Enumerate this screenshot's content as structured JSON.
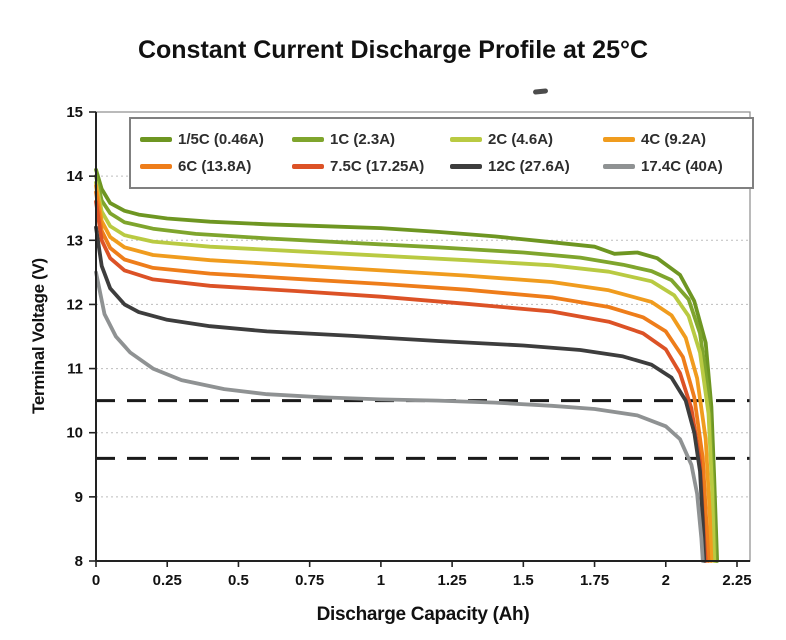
{
  "chart_data": {
    "type": "line",
    "title": "Constant Current Discharge Profile at 25°C",
    "xlabel": "Discharge Capacity (Ah)",
    "ylabel": "Terminal Voltage (V)",
    "xlim": [
      0,
      2.25
    ],
    "ylim": [
      8,
      15
    ],
    "grid": "dotted horizontal gridlines at integer volts",
    "legend_position": "top inside plot, 2 rows x 4 columns",
    "x_ticks": [
      {
        "value": 0,
        "label": "0"
      },
      {
        "value": 0.25,
        "label": "0.25"
      },
      {
        "value": 0.5,
        "label": "0.5"
      },
      {
        "value": 0.75,
        "label": "0.75"
      },
      {
        "value": 1,
        "label": "1"
      },
      {
        "value": 1.25,
        "label": "1.25"
      },
      {
        "value": 1.5,
        "label": "1.5"
      },
      {
        "value": 1.75,
        "label": "1.75"
      },
      {
        "value": 2,
        "label": "2"
      },
      {
        "value": 2.25,
        "label": "2.25"
      }
    ],
    "y_ticks": [
      {
        "value": 8,
        "label": "8"
      },
      {
        "value": 9,
        "label": "9"
      },
      {
        "value": 10,
        "label": "10"
      },
      {
        "value": 11,
        "label": "11"
      },
      {
        "value": 12,
        "label": "12"
      },
      {
        "value": 13,
        "label": "13"
      },
      {
        "value": 14,
        "label": "14"
      },
      {
        "value": 15,
        "label": "15"
      }
    ],
    "y_gridlines": [
      9,
      10,
      11,
      12,
      13,
      14
    ],
    "reference_lines": [
      {
        "y": 10.5,
        "style": "dashed",
        "color": "#1a1a1a",
        "meaning": "cutoff voltage"
      },
      {
        "y": 9.6,
        "style": "dashed",
        "color": "#1a1a1a",
        "meaning": "cutoff voltage"
      }
    ],
    "series": [
      {
        "name": "1/5C (0.46A)",
        "color": "#6e9622",
        "points": [
          [
            0,
            14.1
          ],
          [
            0.02,
            13.8
          ],
          [
            0.05,
            13.58
          ],
          [
            0.1,
            13.46
          ],
          [
            0.15,
            13.4
          ],
          [
            0.25,
            13.34
          ],
          [
            0.4,
            13.29
          ],
          [
            0.6,
            13.25
          ],
          [
            0.8,
            13.22
          ],
          [
            1,
            13.19
          ],
          [
            1.2,
            13.13
          ],
          [
            1.4,
            13.06
          ],
          [
            1.6,
            12.97
          ],
          [
            1.75,
            12.9
          ],
          [
            1.82,
            12.79
          ],
          [
            1.9,
            12.81
          ],
          [
            1.97,
            12.72
          ],
          [
            2.05,
            12.46
          ],
          [
            2.1,
            12.05
          ],
          [
            2.14,
            11.4
          ],
          [
            2.16,
            10.4
          ],
          [
            2.17,
            9.3
          ],
          [
            2.18,
            8
          ]
        ]
      },
      {
        "name": "1C (2.3A)",
        "color": "#7fa52d",
        "points": [
          [
            0,
            14
          ],
          [
            0.02,
            13.62
          ],
          [
            0.05,
            13.42
          ],
          [
            0.1,
            13.28
          ],
          [
            0.2,
            13.18
          ],
          [
            0.35,
            13.1
          ],
          [
            0.6,
            13.03
          ],
          [
            0.9,
            12.96
          ],
          [
            1.2,
            12.89
          ],
          [
            1.5,
            12.81
          ],
          [
            1.7,
            12.73
          ],
          [
            1.85,
            12.62
          ],
          [
            1.95,
            12.52
          ],
          [
            2.02,
            12.38
          ],
          [
            2.08,
            12.08
          ],
          [
            2.12,
            11.55
          ],
          [
            2.15,
            10.6
          ],
          [
            2.165,
            9.3
          ],
          [
            2.175,
            8
          ]
        ]
      },
      {
        "name": "2C (4.6A)",
        "color": "#b9ca42",
        "points": [
          [
            0,
            13.9
          ],
          [
            0.02,
            13.45
          ],
          [
            0.05,
            13.22
          ],
          [
            0.1,
            13.08
          ],
          [
            0.2,
            12.98
          ],
          [
            0.4,
            12.9
          ],
          [
            0.7,
            12.83
          ],
          [
            1,
            12.76
          ],
          [
            1.3,
            12.69
          ],
          [
            1.6,
            12.61
          ],
          [
            1.8,
            12.51
          ],
          [
            1.95,
            12.36
          ],
          [
            2.03,
            12.14
          ],
          [
            2.08,
            11.82
          ],
          [
            2.12,
            11.25
          ],
          [
            2.15,
            10.3
          ],
          [
            2.163,
            9.1
          ],
          [
            2.17,
            8
          ]
        ]
      },
      {
        "name": "4C (9.2A)",
        "color": "#f09c1e",
        "points": [
          [
            0,
            13.85
          ],
          [
            0.02,
            13.3
          ],
          [
            0.05,
            13.05
          ],
          [
            0.1,
            12.89
          ],
          [
            0.2,
            12.77
          ],
          [
            0.4,
            12.69
          ],
          [
            0.7,
            12.61
          ],
          [
            1,
            12.53
          ],
          [
            1.3,
            12.45
          ],
          [
            1.6,
            12.35
          ],
          [
            1.8,
            12.22
          ],
          [
            1.95,
            12.04
          ],
          [
            2.02,
            11.83
          ],
          [
            2.07,
            11.48
          ],
          [
            2.11,
            10.85
          ],
          [
            2.14,
            9.9
          ],
          [
            2.155,
            8.7
          ],
          [
            2.16,
            8
          ]
        ]
      },
      {
        "name": "6C (13.8A)",
        "color": "#ee7d1a",
        "points": [
          [
            0,
            13.75
          ],
          [
            0.02,
            13.15
          ],
          [
            0.05,
            12.88
          ],
          [
            0.1,
            12.7
          ],
          [
            0.2,
            12.57
          ],
          [
            0.4,
            12.48
          ],
          [
            0.7,
            12.4
          ],
          [
            1,
            12.32
          ],
          [
            1.3,
            12.23
          ],
          [
            1.6,
            12.11
          ],
          [
            1.8,
            11.96
          ],
          [
            1.92,
            11.8
          ],
          [
            2,
            11.58
          ],
          [
            2.06,
            11.18
          ],
          [
            2.1,
            10.55
          ],
          [
            2.13,
            9.6
          ],
          [
            2.145,
            8.4
          ],
          [
            2.15,
            8
          ]
        ]
      },
      {
        "name": "7.5C (17.25A)",
        "color": "#dc5226",
        "points": [
          [
            0,
            13.6
          ],
          [
            0.02,
            13
          ],
          [
            0.05,
            12.72
          ],
          [
            0.1,
            12.53
          ],
          [
            0.2,
            12.39
          ],
          [
            0.4,
            12.29
          ],
          [
            0.7,
            12.21
          ],
          [
            1,
            12.12
          ],
          [
            1.3,
            12.01
          ],
          [
            1.6,
            11.89
          ],
          [
            1.8,
            11.73
          ],
          [
            1.92,
            11.55
          ],
          [
            2,
            11.3
          ],
          [
            2.05,
            10.93
          ],
          [
            2.09,
            10.38
          ],
          [
            2.12,
            9.55
          ],
          [
            2.135,
            8.35
          ],
          [
            2.14,
            8
          ]
        ]
      },
      {
        "name": "12C (27.6A)",
        "color": "#3d3d3d",
        "points": [
          [
            0,
            13.2
          ],
          [
            0.02,
            12.6
          ],
          [
            0.05,
            12.25
          ],
          [
            0.1,
            12
          ],
          [
            0.15,
            11.88
          ],
          [
            0.25,
            11.76
          ],
          [
            0.4,
            11.66
          ],
          [
            0.6,
            11.58
          ],
          [
            0.9,
            11.51
          ],
          [
            1.2,
            11.43
          ],
          [
            1.5,
            11.36
          ],
          [
            1.7,
            11.29
          ],
          [
            1.85,
            11.19
          ],
          [
            1.95,
            11.06
          ],
          [
            2.02,
            10.86
          ],
          [
            2.07,
            10.5
          ],
          [
            2.1,
            10
          ],
          [
            2.12,
            9.4
          ],
          [
            2.13,
            8.6
          ],
          [
            2.135,
            8
          ]
        ]
      },
      {
        "name": "17.4C (40A)",
        "color": "#8f9293",
        "points": [
          [
            0,
            12.5
          ],
          [
            0.03,
            11.85
          ],
          [
            0.07,
            11.5
          ],
          [
            0.12,
            11.25
          ],
          [
            0.2,
            11
          ],
          [
            0.3,
            10.82
          ],
          [
            0.45,
            10.68
          ],
          [
            0.6,
            10.6
          ],
          [
            0.8,
            10.55
          ],
          [
            1,
            10.52
          ],
          [
            1.2,
            10.5
          ],
          [
            1.4,
            10.47
          ],
          [
            1.6,
            10.42
          ],
          [
            1.75,
            10.37
          ],
          [
            1.9,
            10.27
          ],
          [
            2,
            10.1
          ],
          [
            2.05,
            9.9
          ],
          [
            2.09,
            9.5
          ],
          [
            2.11,
            9.05
          ],
          [
            2.125,
            8.35
          ],
          [
            2.13,
            8
          ]
        ]
      }
    ]
  },
  "style_colors": {
    "axis": "#222222",
    "frame": "#8c8c8c",
    "gridline": "#bdbdbd",
    "cutoff_dash": "#1a1a1a",
    "text": "#111111"
  }
}
